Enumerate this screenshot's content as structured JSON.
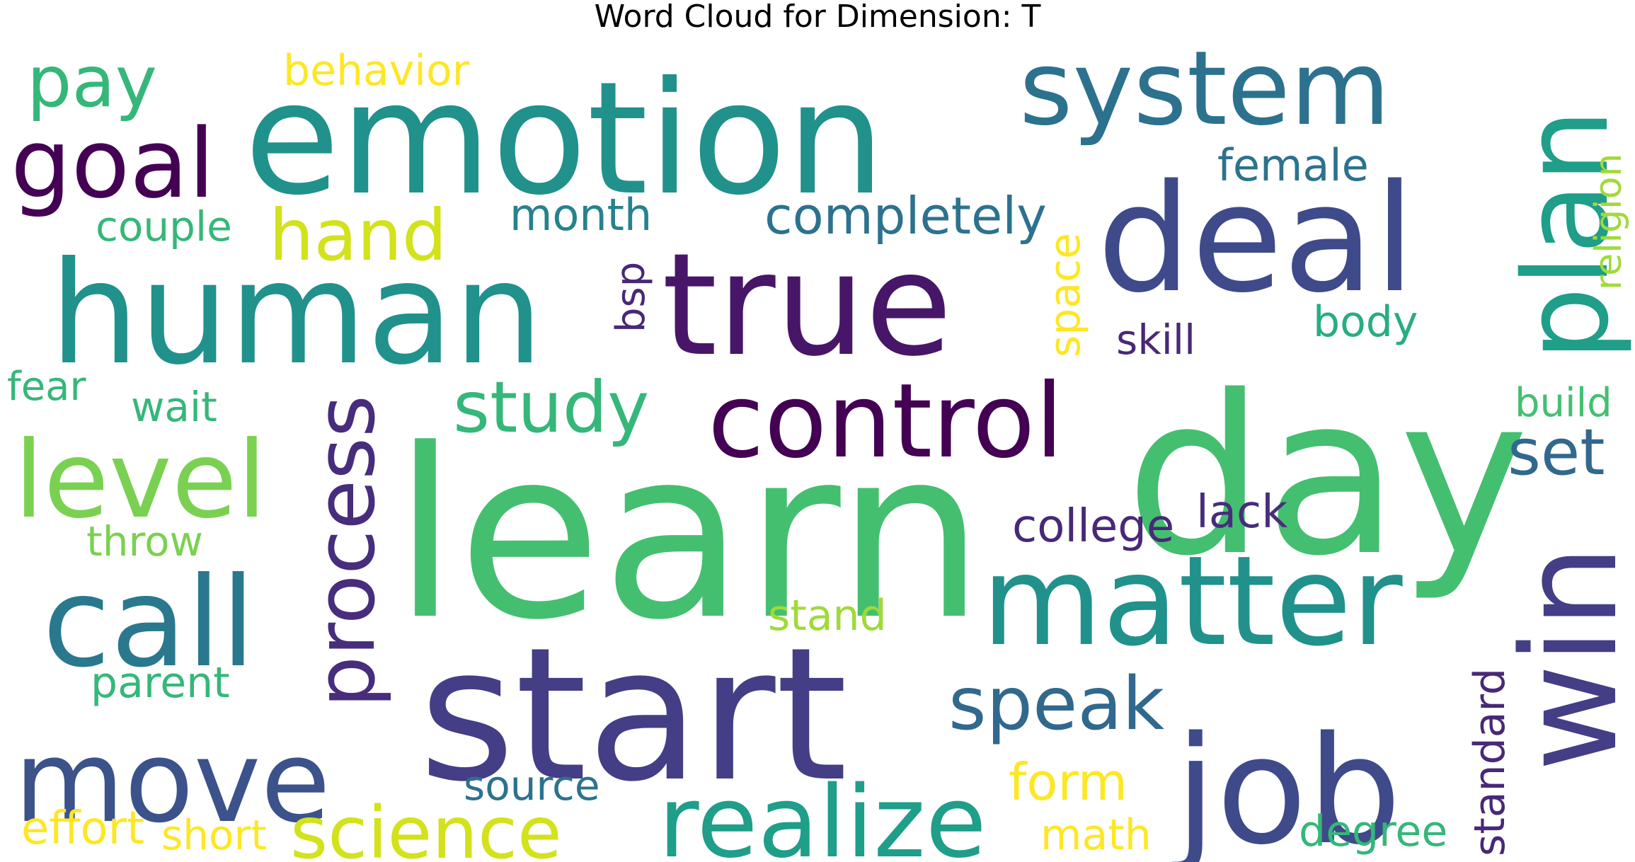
{
  "chart_data": {
    "type": "wordcloud",
    "title": "Word Cloud for Dimension: T",
    "words": [
      {
        "text": "learn",
        "color": "#44bf70"
      },
      {
        "text": "start",
        "color": "#433e85"
      },
      {
        "text": "day",
        "color": "#44bf70"
      },
      {
        "text": "emotion",
        "color": "#21918c"
      },
      {
        "text": "human",
        "color": "#21918c"
      },
      {
        "text": "true",
        "color": "#481668"
      },
      {
        "text": "deal",
        "color": "#3f4a8a"
      },
      {
        "text": "job",
        "color": "#3f4a8a"
      },
      {
        "text": "win",
        "color": "#433e85"
      },
      {
        "text": "call",
        "color": "#2a788e"
      },
      {
        "text": "matter",
        "color": "#21918c"
      },
      {
        "text": "plan",
        "color": "#1f9e89"
      },
      {
        "text": "system",
        "color": "#2c728e"
      },
      {
        "text": "move",
        "color": "#3b528b"
      },
      {
        "text": "control",
        "color": "#440154"
      },
      {
        "text": "level",
        "color": "#7ad151"
      },
      {
        "text": "realize",
        "color": "#1f9e89"
      },
      {
        "text": "process",
        "color": "#472d7b"
      },
      {
        "text": "goal",
        "color": "#440154"
      },
      {
        "text": "science",
        "color": "#d2e21b"
      },
      {
        "text": "speak",
        "color": "#31688e"
      },
      {
        "text": "study",
        "color": "#35b779"
      },
      {
        "text": "hand",
        "color": "#d2e21b"
      },
      {
        "text": "pay",
        "color": "#35b779"
      },
      {
        "text": "set",
        "color": "#31688e"
      },
      {
        "text": "completely",
        "color": "#2c728e"
      },
      {
        "text": "college",
        "color": "#482878"
      },
      {
        "text": "form",
        "color": "#fde725"
      },
      {
        "text": "source",
        "color": "#2c728e"
      },
      {
        "text": "female",
        "color": "#2c728e"
      },
      {
        "text": "month",
        "color": "#26828e"
      },
      {
        "text": "lack",
        "color": "#472d7b"
      },
      {
        "text": "religion",
        "color": "#a0da39"
      },
      {
        "text": "body",
        "color": "#27ad81"
      },
      {
        "text": "standard",
        "color": "#482878"
      },
      {
        "text": "behavior",
        "color": "#fde725"
      },
      {
        "text": "effort",
        "color": "#fde725"
      },
      {
        "text": "short",
        "color": "#fde725"
      },
      {
        "text": "math",
        "color": "#fde725"
      },
      {
        "text": "degree",
        "color": "#35b779"
      },
      {
        "text": "parent",
        "color": "#35b779"
      },
      {
        "text": "stand",
        "color": "#a0da39"
      },
      {
        "text": "space",
        "color": "#fde725"
      },
      {
        "text": "skill",
        "color": "#482878"
      },
      {
        "text": "couple",
        "color": "#35b779"
      },
      {
        "text": "throw",
        "color": "#7ad151"
      },
      {
        "text": "wait",
        "color": "#35b779"
      },
      {
        "text": "build",
        "color": "#44bf70"
      },
      {
        "text": "bsp",
        "color": "#482878"
      },
      {
        "text": "fear",
        "color": "#35b779"
      }
    ]
  }
}
